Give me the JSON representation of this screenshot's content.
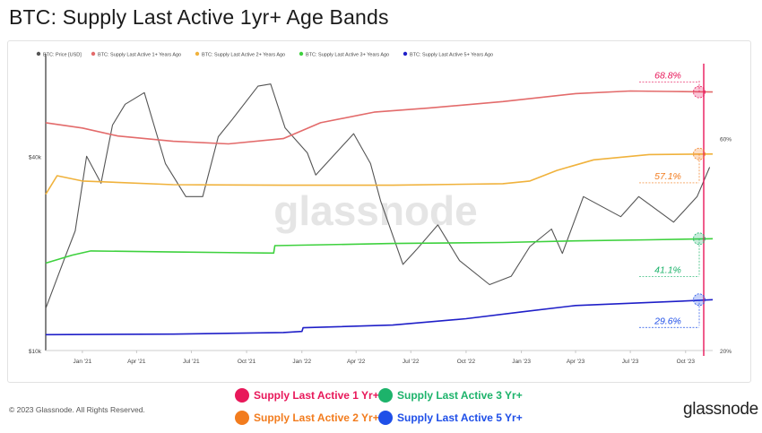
{
  "title": "BTC: Supply Last Active 1yr+ Age Bands",
  "copyright": "© 2023 Glassnode. All Rights Reserved.",
  "brand": "glassnode",
  "watermark": "glassnode",
  "legend_top": [
    {
      "label": "BTC: Price [USD]",
      "color": "#555555"
    },
    {
      "label": "BTC: Supply Last Active 1+ Years Ago",
      "color": "#e36b6b"
    },
    {
      "label": "BTC: Supply Last Active 2+ Years Ago",
      "color": "#f0b23c"
    },
    {
      "label": "BTC: Supply Last Active 3+ Years Ago",
      "color": "#3ed13e"
    },
    {
      "label": "BTC: Supply Last Active 5+ Years Ago",
      "color": "#1f1fc8"
    }
  ],
  "legend_bottom": [
    {
      "label": "Supply Last Active 1 Yr+",
      "color": "#e8185a"
    },
    {
      "label": "Supply Last Active 3 Yr+",
      "color": "#1db36b"
    },
    {
      "label": "Supply Last Active 2 Yr+",
      "color": "#f27c1e"
    },
    {
      "label": "Supply Last Active 5 Yr+",
      "color": "#1f4fe8"
    }
  ],
  "annotations": [
    {
      "text": "68.8%",
      "color": "#e8185a"
    },
    {
      "text": "57.1%",
      "color": "#f27c1e"
    },
    {
      "text": "41.1%",
      "color": "#1db36b"
    },
    {
      "text": "29.6%",
      "color": "#1f4fe8"
    }
  ],
  "chart_data": {
    "type": "line",
    "title": "BTC: Supply Last Active 1yr+ Age Bands",
    "x_ticks": [
      "Jan '21",
      "Apr '21",
      "Jul '21",
      "Oct '21",
      "Jan '22",
      "Apr '22",
      "Jul '22",
      "Oct '22",
      "Jan '23",
      "Apr '23",
      "Jul '23",
      "Oct '23"
    ],
    "x_range": [
      "2020-11-01",
      "2023-11-15"
    ],
    "y_left": {
      "scale": "log",
      "ticks": [
        "$10k",
        "$40k"
      ],
      "range": [
        10000,
        80000
      ]
    },
    "y_right": {
      "ticks": [
        "20%",
        "60%"
      ],
      "range": [
        20,
        75
      ]
    },
    "series": [
      {
        "name": "BTC: Price [USD]",
        "axis": "left",
        "color": "#555555",
        "x": [
          "2020-11-01",
          "2020-12-01",
          "2020-12-20",
          "2021-01-08",
          "2021-02-01",
          "2021-02-20",
          "2021-03-13",
          "2021-04-14",
          "2021-05-19",
          "2021-06-22",
          "2021-07-20",
          "2021-08-15",
          "2021-09-07",
          "2021-10-20",
          "2021-11-10",
          "2021-12-04",
          "2022-01-10",
          "2022-01-24",
          "2022-03-28",
          "2022-04-25",
          "2022-05-12",
          "2022-06-18",
          "2022-07-10",
          "2022-08-15",
          "2022-09-20",
          "2022-11-09",
          "2022-12-15",
          "2023-01-15",
          "2023-02-20",
          "2023-03-10",
          "2023-04-14",
          "2023-06-15",
          "2023-07-15",
          "2023-09-11",
          "2023-10-20",
          "2023-11-10"
        ],
        "y": [
          13500,
          19000,
          23500,
          40000,
          33000,
          50000,
          58000,
          63000,
          38000,
          30000,
          30000,
          46000,
          52000,
          66000,
          67000,
          49000,
          41000,
          35000,
          47000,
          38000,
          29000,
          18500,
          20500,
          24500,
          19000,
          16000,
          17000,
          21000,
          23800,
          20000,
          30000,
          26000,
          30000,
          25000,
          30000,
          37000
        ]
      },
      {
        "name": "BTC: Supply Last Active 1+ Years Ago",
        "axis": "right",
        "color": "#e36b6b",
        "x": [
          "2020-11-01",
          "2021-01-01",
          "2021-03-01",
          "2021-06-01",
          "2021-09-01",
          "2021-12-01",
          "2022-02-01",
          "2022-05-01",
          "2022-08-01",
          "2022-12-01",
          "2023-04-01",
          "2023-07-01",
          "2023-09-01",
          "2023-11-15"
        ],
        "y": [
          63,
          62,
          60.5,
          59.5,
          59,
          60,
          63,
          65,
          65.8,
          67,
          68.5,
          69,
          68.9,
          68.8
        ]
      },
      {
        "name": "BTC: Supply Last Active 2+ Years Ago",
        "axis": "right",
        "color": "#f0b23c",
        "x": [
          "2020-11-01",
          "2020-11-20",
          "2021-01-01",
          "2021-06-01",
          "2021-12-01",
          "2022-06-01",
          "2022-12-01",
          "2023-01-15",
          "2023-03-01",
          "2023-05-01",
          "2023-08-01",
          "2023-11-15"
        ],
        "y": [
          49.5,
          53,
          52,
          51.3,
          51.2,
          51.2,
          51.5,
          52,
          54,
          56,
          57,
          57.1
        ]
      },
      {
        "name": "BTC: Supply Last Active 3+ Years Ago",
        "axis": "right",
        "color": "#3ed13e",
        "x": [
          "2020-11-01",
          "2020-12-15",
          "2021-01-15",
          "2021-06-01",
          "2021-11-15",
          "2021-11-17",
          "2022-06-01",
          "2022-12-01",
          "2023-04-01",
          "2023-08-01",
          "2023-11-15"
        ],
        "y": [
          36.5,
          38,
          38.8,
          38.6,
          38.4,
          39.8,
          40.2,
          40.4,
          40.7,
          40.9,
          41.1
        ]
      },
      {
        "name": "BTC: Supply Last Active 5+ Years Ago",
        "axis": "right",
        "color": "#1f1fc8",
        "x": [
          "2020-11-01",
          "2021-06-01",
          "2021-12-01",
          "2022-01-01",
          "2022-01-03",
          "2022-06-01",
          "2022-10-01",
          "2023-01-01",
          "2023-04-01",
          "2023-09-01",
          "2023-11-15"
        ],
        "y": [
          23,
          23.1,
          23.4,
          23.6,
          24.3,
          24.8,
          26,
          27.3,
          28.5,
          29.2,
          29.6
        ]
      }
    ],
    "grid": false,
    "legend": "top-left"
  }
}
